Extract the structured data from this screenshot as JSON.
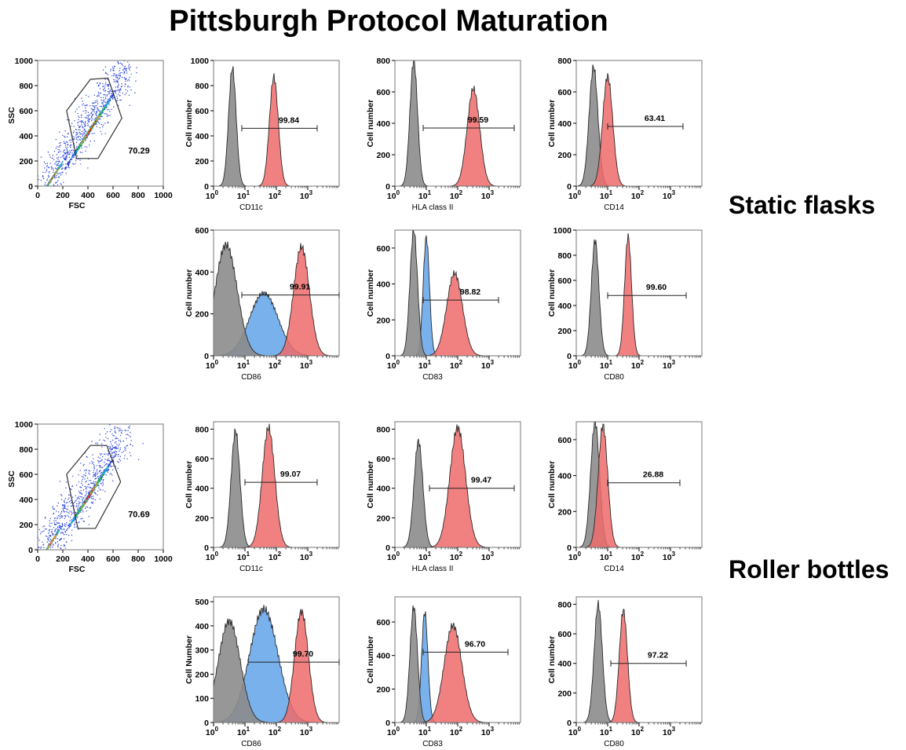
{
  "title": "Pittsburgh Protocol Maturation",
  "row_labels": {
    "static": "Static flasks",
    "roller": "Roller bottles"
  },
  "colors": {
    "isotype": "#8c8c8c",
    "positive": "#ef6b6b",
    "immature": "#6aa8ea",
    "overlap": "#8a2a4a",
    "outline": "#2a2a2a"
  },
  "chart_data": [
    {
      "type": "scatter",
      "group": "Static flasks",
      "xlabel": "FSC",
      "ylabel": "SSC",
      "xlim": [
        0,
        1000
      ],
      "ylim": [
        0,
        1000
      ],
      "xticks": [
        "0",
        "200",
        "400",
        "600",
        "800",
        "1000"
      ],
      "yticks": [
        "0",
        "200",
        "400",
        "600",
        "800",
        "1000"
      ],
      "gate_percent": "70.29",
      "gate_polygon": [
        [
          230,
          600
        ],
        [
          420,
          850
        ],
        [
          560,
          860
        ],
        [
          670,
          540
        ],
        [
          480,
          220
        ],
        [
          310,
          220
        ]
      ],
      "clusters": [
        {
          "x": 420,
          "y": 450,
          "n": 1100
        },
        {
          "x": 120,
          "y": 70,
          "n": 260
        }
      ]
    },
    {
      "type": "histogram",
      "group": "Static flasks",
      "marker": "CD11c",
      "ylabel": "Cell number",
      "ylim": [
        0,
        1000
      ],
      "yticks": [
        "0",
        "200",
        "400",
        "600",
        "800",
        "1000"
      ],
      "xlim_log": [
        0,
        4
      ],
      "series": [
        {
          "name": "isotype",
          "peak_log": 0.6,
          "height": 940,
          "sd": 0.12
        },
        {
          "name": "positive",
          "peak_log": 1.92,
          "height": 870,
          "sd": 0.14
        }
      ],
      "gate_percent": "99.84",
      "gate_range_log": [
        0.9,
        3.3
      ],
      "gate_y": 460
    },
    {
      "type": "histogram",
      "group": "Static flasks",
      "marker": "HLA class II",
      "ylabel": "Cell number",
      "ylim": [
        0,
        800
      ],
      "yticks": [
        "0",
        "200",
        "400",
        "600",
        "800"
      ],
      "xlim_log": [
        0,
        4
      ],
      "series": [
        {
          "name": "isotype",
          "peak_log": 0.6,
          "height": 800,
          "sd": 0.12
        },
        {
          "name": "positive",
          "peak_log": 2.5,
          "height": 620,
          "sd": 0.2
        }
      ],
      "gate_percent": "99.59",
      "gate_range_log": [
        0.9,
        3.8
      ],
      "gate_y": 370
    },
    {
      "type": "histogram",
      "group": "Static flasks",
      "marker": "CD14",
      "ylabel": "Cell number",
      "ylim": [
        0,
        800
      ],
      "yticks": [
        "0",
        "200",
        "400",
        "600",
        "800"
      ],
      "xlim_log": [
        0,
        4
      ],
      "series": [
        {
          "name": "isotype",
          "peak_log": 0.55,
          "height": 760,
          "sd": 0.14
        },
        {
          "name": "positive",
          "peak_log": 1.0,
          "height": 700,
          "sd": 0.16
        }
      ],
      "gate_percent": "63.41",
      "gate_range_log": [
        1.0,
        3.4
      ],
      "gate_y": 380
    },
    {
      "type": "histogram",
      "group": "Static flasks",
      "marker": "CD86",
      "ylabel": "Cell number",
      "ylim": [
        0,
        600
      ],
      "yticks": [
        "0",
        "200",
        "400",
        "600"
      ],
      "xlim_log": [
        0,
        4
      ],
      "series": [
        {
          "name": "isotype",
          "peak_log": 0.4,
          "height": 530,
          "sd": 0.35
        },
        {
          "name": "immature",
          "peak_log": 1.6,
          "height": 300,
          "sd": 0.45
        },
        {
          "name": "positive",
          "peak_log": 2.8,
          "height": 520,
          "sd": 0.25
        }
      ],
      "gate_percent": "99.91",
      "gate_range_log": [
        0.9,
        4.0
      ],
      "gate_y": 290
    },
    {
      "type": "histogram",
      "group": "Static flasks",
      "marker": "CD83",
      "ylabel": "Cell number",
      "ylim": [
        0,
        700
      ],
      "yticks": [
        "0",
        "200",
        "400",
        "600"
      ],
      "xlim_log": [
        0,
        4
      ],
      "series": [
        {
          "name": "isotype",
          "peak_log": 0.6,
          "height": 700,
          "sd": 0.12
        },
        {
          "name": "immature",
          "peak_log": 1.0,
          "height": 660,
          "sd": 0.1
        },
        {
          "name": "positive",
          "peak_log": 1.9,
          "height": 460,
          "sd": 0.25
        }
      ],
      "gate_percent": "98.82",
      "gate_range_log": [
        0.9,
        3.3
      ],
      "gate_y": 310
    },
    {
      "type": "histogram",
      "group": "Static flasks",
      "marker": "CD80",
      "ylabel": "Cell number",
      "ylim": [
        0,
        1000
      ],
      "yticks": [
        "0",
        "200",
        "400",
        "600",
        "800",
        "1000"
      ],
      "xlim_log": [
        0,
        4
      ],
      "series": [
        {
          "name": "isotype",
          "peak_log": 0.6,
          "height": 920,
          "sd": 0.12
        },
        {
          "name": "positive",
          "peak_log": 1.65,
          "height": 950,
          "sd": 0.11
        }
      ],
      "gate_percent": "99.60",
      "gate_range_log": [
        1.0,
        3.5
      ],
      "gate_y": 480
    },
    {
      "type": "scatter",
      "group": "Roller bottles",
      "xlabel": "FSC",
      "ylabel": "SSC",
      "xlim": [
        0,
        1000
      ],
      "ylim": [
        0,
        1000
      ],
      "xticks": [
        "0",
        "200",
        "400",
        "600",
        "800",
        "1000"
      ],
      "yticks": [
        "0",
        "200",
        "400",
        "600",
        "800",
        "1000"
      ],
      "gate_percent": "70.69",
      "gate_polygon": [
        [
          230,
          600
        ],
        [
          420,
          830
        ],
        [
          550,
          830
        ],
        [
          660,
          540
        ],
        [
          460,
          170
        ],
        [
          320,
          170
        ]
      ],
      "clusters": [
        {
          "x": 410,
          "y": 430,
          "n": 1100
        },
        {
          "x": 110,
          "y": 60,
          "n": 260
        }
      ]
    },
    {
      "type": "histogram",
      "group": "Roller bottles",
      "marker": "CD11c",
      "ylabel": "Cell number",
      "ylim": [
        0,
        850
      ],
      "yticks": [
        "0",
        "200",
        "400",
        "600",
        "800"
      ],
      "xlim_log": [
        0,
        4
      ],
      "series": [
        {
          "name": "isotype",
          "peak_log": 0.7,
          "height": 790,
          "sd": 0.14
        },
        {
          "name": "positive",
          "peak_log": 1.75,
          "height": 810,
          "sd": 0.2
        }
      ],
      "gate_percent": "99.07",
      "gate_range_log": [
        1.0,
        3.3
      ],
      "gate_y": 440
    },
    {
      "type": "histogram",
      "group": "Roller bottles",
      "marker": "HLA class II",
      "ylabel": "Cell number",
      "ylim": [
        0,
        850
      ],
      "yticks": [
        "0",
        "200",
        "400",
        "600",
        "800"
      ],
      "xlim_log": [
        0,
        4
      ],
      "series": [
        {
          "name": "isotype",
          "peak_log": 0.75,
          "height": 720,
          "sd": 0.14
        },
        {
          "name": "positive",
          "peak_log": 2.0,
          "height": 810,
          "sd": 0.25
        }
      ],
      "gate_percent": "99.47",
      "gate_range_log": [
        1.1,
        3.8
      ],
      "gate_y": 400
    },
    {
      "type": "histogram",
      "group": "Roller bottles",
      "marker": "CD14",
      "ylabel": "Cell number",
      "ylim": [
        0,
        700
      ],
      "yticks": [
        "0",
        "200",
        "400",
        "600"
      ],
      "xlim_log": [
        0,
        4
      ],
      "series": [
        {
          "name": "isotype",
          "peak_log": 0.6,
          "height": 700,
          "sd": 0.14
        },
        {
          "name": "positive",
          "peak_log": 0.85,
          "height": 680,
          "sd": 0.15
        }
      ],
      "gate_percent": "26.88",
      "gate_range_log": [
        1.0,
        3.3
      ],
      "gate_y": 360
    },
    {
      "type": "histogram",
      "group": "Roller bottles",
      "marker": "CD86",
      "ylabel": "Cell Number",
      "ylim": [
        0,
        520
      ],
      "yticks": [
        "0",
        "100",
        "200",
        "300",
        "400",
        "500"
      ],
      "xlim_log": [
        0,
        4
      ],
      "series": [
        {
          "name": "isotype",
          "peak_log": 0.5,
          "height": 420,
          "sd": 0.35
        },
        {
          "name": "immature",
          "peak_log": 1.6,
          "height": 470,
          "sd": 0.45
        },
        {
          "name": "positive",
          "peak_log": 2.8,
          "height": 460,
          "sd": 0.22
        }
      ],
      "gate_percent": "99.70",
      "gate_range_log": [
        1.1,
        4.0
      ],
      "gate_y": 250
    },
    {
      "type": "histogram",
      "group": "Roller bottles",
      "marker": "CD83",
      "ylabel": "Cell number",
      "ylim": [
        0,
        750
      ],
      "yticks": [
        "0",
        "200",
        "400",
        "600"
      ],
      "xlim_log": [
        0,
        4
      ],
      "series": [
        {
          "name": "isotype",
          "peak_log": 0.6,
          "height": 690,
          "sd": 0.12
        },
        {
          "name": "immature",
          "peak_log": 0.95,
          "height": 660,
          "sd": 0.1
        },
        {
          "name": "positive",
          "peak_log": 1.85,
          "height": 580,
          "sd": 0.28
        }
      ],
      "gate_percent": "96.70",
      "gate_range_log": [
        0.9,
        3.6
      ],
      "gate_y": 420
    },
    {
      "type": "histogram",
      "group": "Roller bottles",
      "marker": "CD80",
      "ylabel": "Cell number",
      "ylim": [
        0,
        850
      ],
      "yticks": [
        "0",
        "200",
        "400",
        "600",
        "800"
      ],
      "xlim_log": [
        0,
        4
      ],
      "series": [
        {
          "name": "isotype",
          "peak_log": 0.7,
          "height": 800,
          "sd": 0.13
        },
        {
          "name": "positive",
          "peak_log": 1.5,
          "height": 760,
          "sd": 0.13
        }
      ],
      "gate_percent": "97.22",
      "gate_range_log": [
        1.1,
        3.5
      ],
      "gate_y": 400
    }
  ]
}
